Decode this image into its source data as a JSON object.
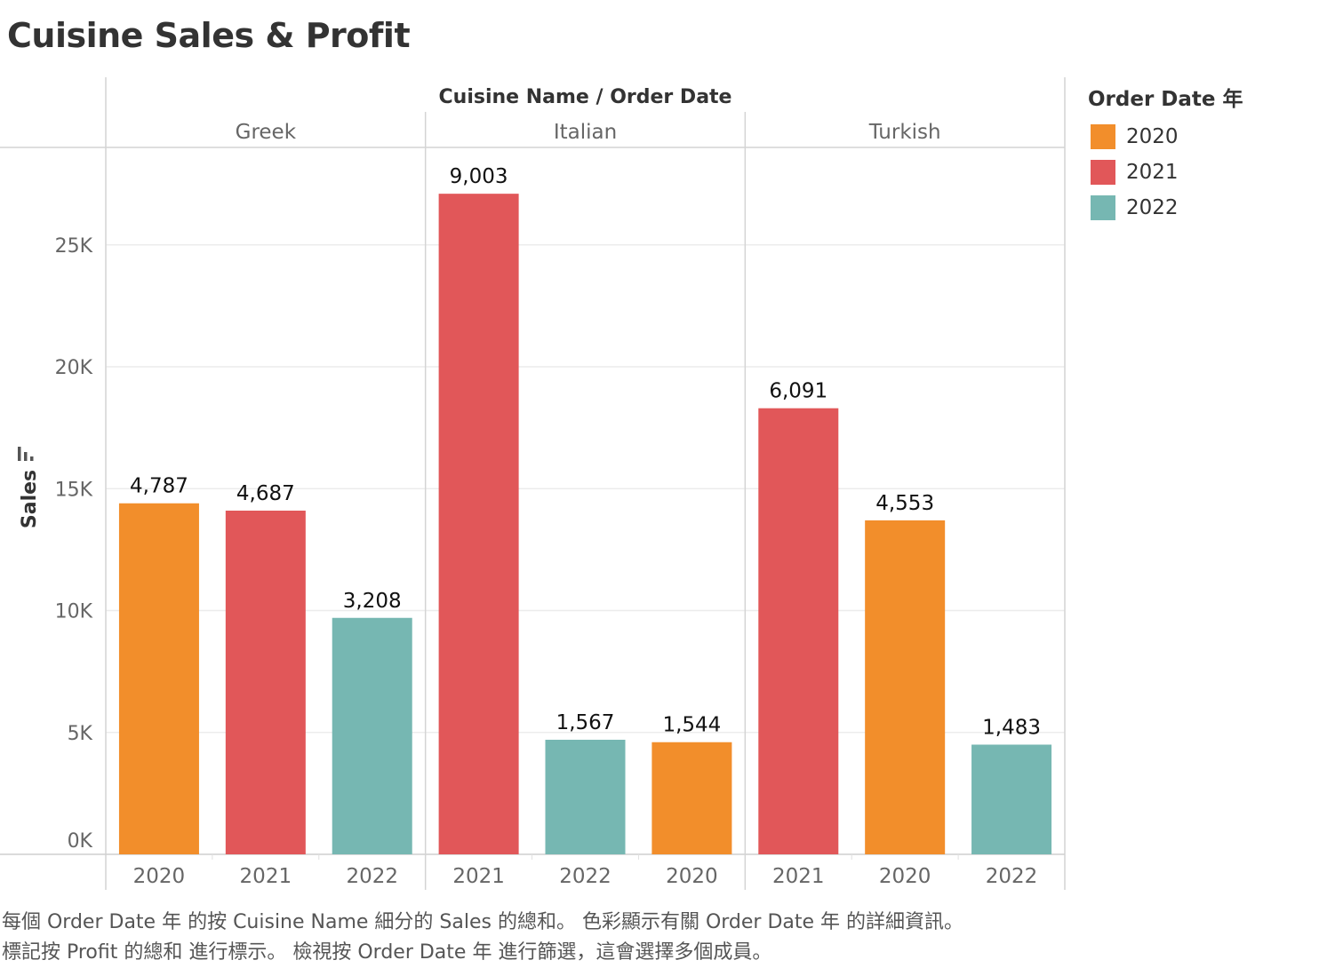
{
  "title": "Cuisine Sales & Profit",
  "header": {
    "column_label": "Cuisine Name  /  Order Date"
  },
  "legend": {
    "title": "Order Date 年",
    "items": [
      {
        "label": "2020",
        "color": "#F28E2B"
      },
      {
        "label": "2021",
        "color": "#E15759"
      },
      {
        "label": "2022",
        "color": "#76B7B2"
      }
    ]
  },
  "caption": {
    "line1": "每個 Order Date 年 的按 Cuisine Name 細分的 Sales 的總和。 色彩顯示有關 Order Date 年 的詳細資訊。",
    "line2": "標記按 Profit 的總和 進行標示。 檢視按 Order Date 年 進行篩選，這會選擇多個成員。"
  },
  "chart_data": {
    "type": "bar",
    "ylabel": "Sales",
    "ylim": [
      0,
      29000
    ],
    "yticks": [
      {
        "value": 0,
        "label": "0K"
      },
      {
        "value": 5000,
        "label": "5K"
      },
      {
        "value": 10000,
        "label": "10K"
      },
      {
        "value": 15000,
        "label": "15K"
      },
      {
        "value": 20000,
        "label": "20K"
      },
      {
        "value": 25000,
        "label": "25K"
      }
    ],
    "groups": [
      {
        "name": "Greek",
        "bars": [
          {
            "year": "2020",
            "sales": 14400,
            "profit_label": "4,787"
          },
          {
            "year": "2021",
            "sales": 14100,
            "profit_label": "4,687"
          },
          {
            "year": "2022",
            "sales": 9700,
            "profit_label": "3,208"
          }
        ]
      },
      {
        "name": "Italian",
        "bars": [
          {
            "year": "2021",
            "sales": 27100,
            "profit_label": "9,003"
          },
          {
            "year": "2022",
            "sales": 4700,
            "profit_label": "1,567"
          },
          {
            "year": "2020",
            "sales": 4600,
            "profit_label": "1,544"
          }
        ]
      },
      {
        "name": "Turkish",
        "bars": [
          {
            "year": "2021",
            "sales": 18300,
            "profit_label": "6,091"
          },
          {
            "year": "2020",
            "sales": 13700,
            "profit_label": "4,553"
          },
          {
            "year": "2022",
            "sales": 4500,
            "profit_label": "1,483"
          }
        ]
      }
    ],
    "grid": true,
    "legend_position": "right"
  }
}
